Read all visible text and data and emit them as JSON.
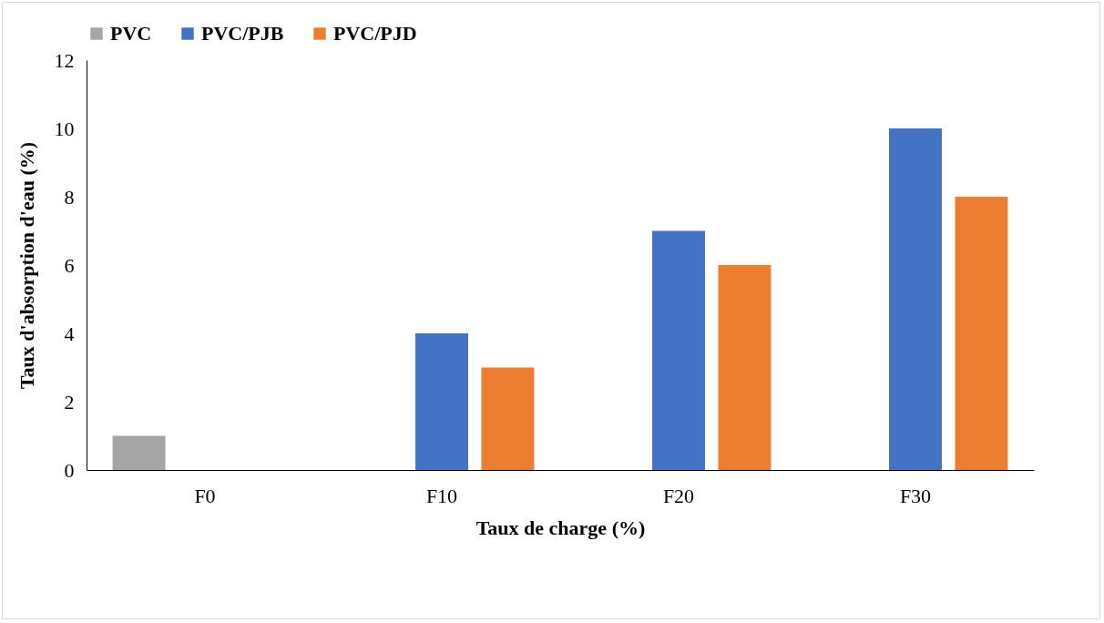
{
  "chart_data": {
    "type": "bar",
    "xlabel": "Taux de charge (%)",
    "ylabel": "Taux d'absorption d'eau (%)",
    "categories": [
      "F0",
      "F10",
      "F20",
      "F30"
    ],
    "series": [
      {
        "name": "PVC",
        "color": "#a5a5a5",
        "values": [
          1,
          null,
          null,
          null
        ]
      },
      {
        "name": "PVC/PJB",
        "color": "#4472c4",
        "values": [
          null,
          4,
          7,
          10
        ]
      },
      {
        "name": "PVC/PJD",
        "color": "#ed7d31",
        "values": [
          null,
          3,
          6,
          8
        ]
      }
    ],
    "ylim": [
      0,
      12
    ],
    "yticks": [
      0,
      2,
      4,
      6,
      8,
      10,
      12
    ],
    "grid": false,
    "legend": "top"
  }
}
